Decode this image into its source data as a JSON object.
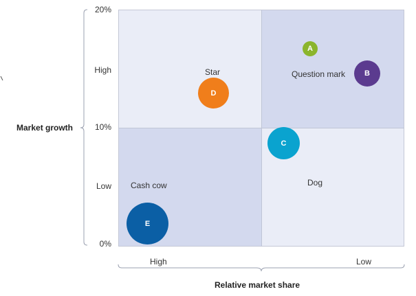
{
  "y_axis": {
    "title": "Market growth",
    "ticks": [
      "20%",
      "10%",
      "0%"
    ],
    "level_labels": [
      "High",
      "Low"
    ]
  },
  "x_axis": {
    "title": "Relative market share",
    "level_labels": [
      "High",
      "Low"
    ]
  },
  "quadrants": {
    "top_left": "Star",
    "top_right": "Question mark",
    "bottom_left": "Cash cow",
    "bottom_right": "Dog"
  },
  "bubbles": [
    {
      "label": "A",
      "color": "#8bb52c"
    },
    {
      "label": "B",
      "color": "#5b3b8f"
    },
    {
      "label": "C",
      "color": "#0aa3cf"
    },
    {
      "label": "D",
      "color": "#f07e1b"
    },
    {
      "label": "E",
      "color": "#0b5fa5"
    }
  ],
  "colors": {
    "quadrant_light": "#eaedf7",
    "quadrant_dark": "#d3d9ee"
  }
}
